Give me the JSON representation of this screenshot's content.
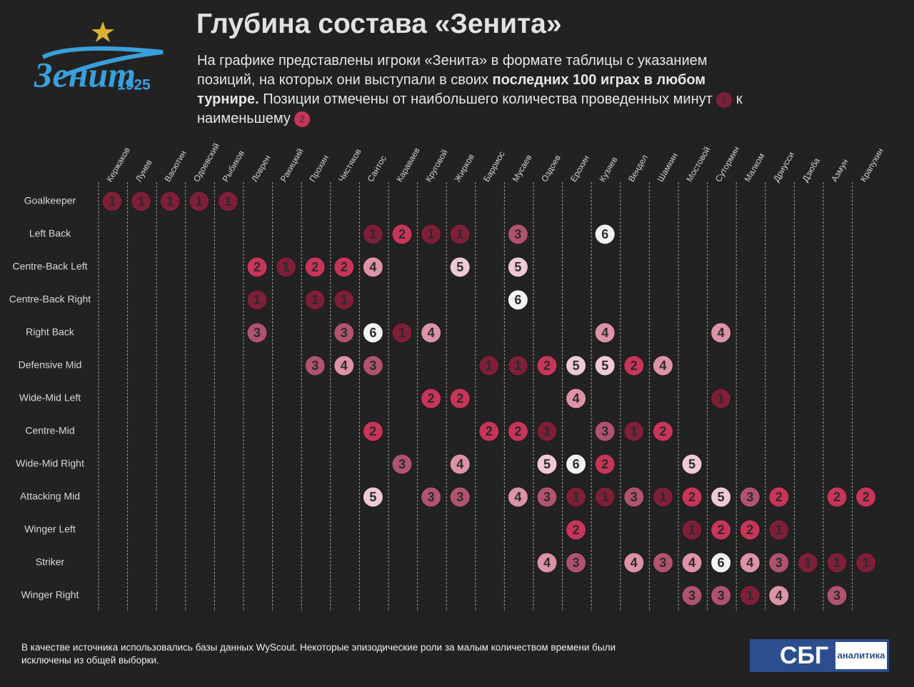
{
  "logo": {
    "name": "Зенит",
    "year": "1925"
  },
  "header": {
    "title": "Глубина состава «Зенита»",
    "subtitle": [
      {
        "text": "На графике представлены игроки «Зенита» в формате таблицы с указанием позиций, на которых они выступали в своих "
      },
      {
        "text": "последних 100 играх в любом турнире.",
        "bold": true
      },
      {
        "text": " Позиции отмечены от наибольшего количества проведенных минут "
      },
      {
        "badge": 1
      },
      {
        "text": " к наименьшему "
      },
      {
        "badge": 2
      }
    ]
  },
  "rank_colors": {
    "1": "#7d1f37",
    "2": "#c83559",
    "3": "#b0536e",
    "4": "#dc93a6",
    "5": "#efc9d3",
    "6": "#f3f3f3"
  },
  "table": {
    "players": [
      "Кержаков",
      "Лунев",
      "Васютин",
      "Одоевский",
      "Рыбиков",
      "Ловрен",
      "Ракицкий",
      "Прохин",
      "Чистяков",
      "Сантос",
      "Караваев",
      "Круговой",
      "Жирков",
      "Барриос",
      "Мусаев",
      "Оздоев",
      "Ерохин",
      "Кузяев",
      "Вендел",
      "Шамкин",
      "Мостовой",
      "Сутормин",
      "Малком",
      "Дриусси",
      "Дзюба",
      "Азмун",
      "Крапухин"
    ],
    "positions": [
      "Goalkeeper",
      "Left Back",
      "Centre-Back Left",
      "Centre-Back Right",
      "Right Back",
      "Defensive Mid",
      "Wide-Mid Left",
      "Centre-Mid",
      "Wide-Mid Right",
      "Attacking Mid",
      "Winger Left",
      "Striker",
      "Winger Right"
    ],
    "rows": [
      [
        1,
        1,
        1,
        1,
        1,
        null,
        null,
        null,
        null,
        null,
        null,
        null,
        null,
        null,
        null,
        null,
        null,
        null,
        null,
        null,
        null,
        null,
        null,
        null,
        null,
        null,
        null
      ],
      [
        null,
        null,
        null,
        null,
        null,
        null,
        null,
        null,
        null,
        1,
        2,
        1,
        1,
        null,
        3,
        null,
        null,
        6,
        null,
        null,
        null,
        null,
        null,
        null,
        null,
        null,
        null
      ],
      [
        null,
        null,
        null,
        null,
        null,
        2,
        1,
        2,
        2,
        4,
        null,
        null,
        5,
        null,
        5,
        null,
        null,
        null,
        null,
        null,
        null,
        null,
        null,
        null,
        null,
        null,
        null
      ],
      [
        null,
        null,
        null,
        null,
        null,
        1,
        null,
        1,
        1,
        null,
        null,
        null,
        null,
        null,
        6,
        null,
        null,
        null,
        null,
        null,
        null,
        null,
        null,
        null,
        null,
        null,
        null
      ],
      [
        null,
        null,
        null,
        null,
        null,
        3,
        null,
        null,
        3,
        6,
        1,
        4,
        null,
        null,
        null,
        null,
        null,
        4,
        null,
        null,
        null,
        4,
        null,
        null,
        null,
        null,
        null
      ],
      [
        null,
        null,
        null,
        null,
        null,
        null,
        null,
        3,
        4,
        3,
        null,
        null,
        null,
        1,
        1,
        2,
        5,
        5,
        2,
        4,
        null,
        null,
        null,
        null,
        null,
        null,
        null
      ],
      [
        null,
        null,
        null,
        null,
        null,
        null,
        null,
        null,
        null,
        null,
        null,
        2,
        2,
        null,
        null,
        null,
        4,
        null,
        null,
        null,
        null,
        1,
        null,
        null,
        null,
        null,
        null
      ],
      [
        null,
        null,
        null,
        null,
        null,
        null,
        null,
        null,
        null,
        2,
        null,
        null,
        null,
        2,
        2,
        1,
        null,
        3,
        1,
        2,
        null,
        null,
        null,
        null,
        null,
        null,
        null
      ],
      [
        null,
        null,
        null,
        null,
        null,
        null,
        null,
        null,
        null,
        null,
        3,
        null,
        4,
        null,
        null,
        5,
        6,
        2,
        null,
        null,
        5,
        null,
        null,
        null,
        null,
        null,
        null
      ],
      [
        null,
        null,
        null,
        null,
        null,
        null,
        null,
        null,
        null,
        5,
        null,
        3,
        3,
        null,
        4,
        3,
        1,
        1,
        3,
        1,
        2,
        5,
        3,
        2,
        null,
        2,
        2
      ],
      [
        null,
        null,
        null,
        null,
        null,
        null,
        null,
        null,
        null,
        null,
        null,
        null,
        null,
        null,
        null,
        null,
        2,
        null,
        null,
        null,
        1,
        2,
        2,
        1,
        null,
        null,
        null
      ],
      [
        null,
        null,
        null,
        null,
        null,
        null,
        null,
        null,
        null,
        null,
        null,
        null,
        null,
        null,
        null,
        4,
        3,
        null,
        4,
        3,
        4,
        6,
        4,
        3,
        1,
        1,
        1
      ],
      [
        null,
        null,
        null,
        null,
        null,
        null,
        null,
        null,
        null,
        null,
        null,
        null,
        null,
        null,
        null,
        null,
        null,
        null,
        null,
        null,
        3,
        3,
        1,
        4,
        null,
        3,
        null
      ]
    ]
  },
  "footer": {
    "note": "В качестве источника использовались базы данных WyScout. Некоторые эпизодические роли за малым количеством времени были исключены из общей выборки.",
    "brand": "СБГ",
    "brand_sub": "аналитика"
  }
}
